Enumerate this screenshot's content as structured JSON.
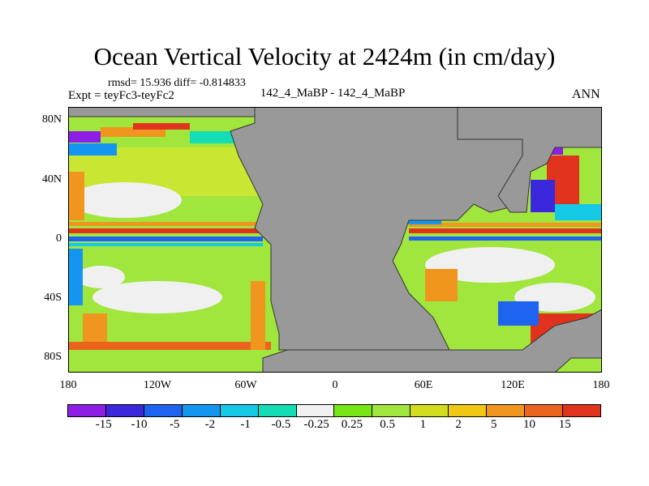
{
  "title": "Ocean Vertical Velocity at 2424m (in cm/day)",
  "stats": "rmsd= 15.936 diff= -0.814833",
  "expt": "Expt = teyFc3-teyFc2",
  "center_label": "142_4_MaBP - 142_4_MaBP",
  "season": "ANN",
  "axes": {
    "y_ticks": [
      "80N",
      "40N",
      "0",
      "40S",
      "80S"
    ],
    "x_ticks": [
      "180",
      "120W",
      "60W",
      "0",
      "60E",
      "120E",
      "180"
    ]
  },
  "colorbar": {
    "colors": [
      "#8c1ee6",
      "#3c28dc",
      "#1e64f0",
      "#1496f0",
      "#14c8e6",
      "#14dcb4",
      "#f0f0f0",
      "#78e614",
      "#a0e63c",
      "#d2dc1e",
      "#f0c814",
      "#f0961e",
      "#eb641e",
      "#e1321e"
    ],
    "labels": [
      "-15",
      "-10",
      "-5",
      "-2",
      "-1",
      "-0.5",
      "-0.25",
      "0.25",
      "0.5",
      "1",
      "2",
      "5",
      "10",
      "15"
    ]
  },
  "colors": {
    "land": "#999999",
    "coast": "#333333",
    "ocean_bg": "#a0e63c"
  }
}
